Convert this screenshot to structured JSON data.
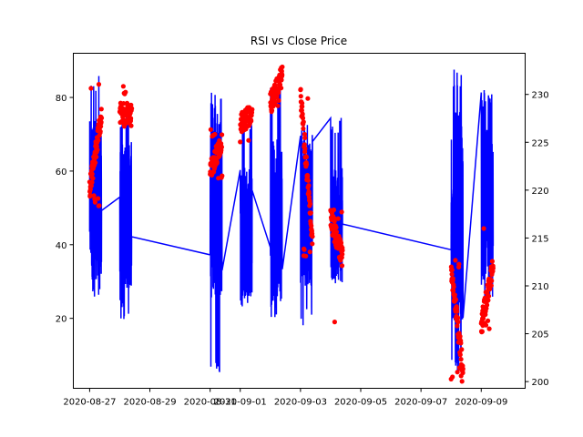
{
  "chart_data": {
    "type": "line",
    "title": "RSI vs Close Price",
    "xlabel": "",
    "ylabel_left": "",
    "ylabel_right": "",
    "x_tick_labels": [
      "2020-08-27",
      "2020-08-29",
      "2020-08-31",
      "2020-09-01",
      "2020-09-03",
      "2020-09-05",
      "2020-09-07",
      "2020-09-09"
    ],
    "xlim": [
      "2020-08-26T11:00",
      "2020-09-10T11:00"
    ],
    "y_left": {
      "lim": [
        1,
        92
      ],
      "ticks": [
        20,
        40,
        60,
        80
      ]
    },
    "y_right": {
      "lim": [
        199.3,
        234.3
      ],
      "ticks": [
        200,
        205,
        210,
        215,
        220,
        225,
        230
      ]
    },
    "grid": false,
    "legend": "none",
    "series": [
      {
        "axis": "left",
        "style": "line",
        "color": "#0000ff",
        "segments": [
          {
            "start": "2020-08-27T00:00",
            "end": "2020-08-27T09:30",
            "mid": 52,
            "low": 24,
            "high": 86
          },
          {
            "start": "2020-08-28T00:00",
            "end": "2020-08-28T09:30",
            "mid": 48,
            "low": 19,
            "high": 76
          },
          {
            "start": "2020-08-31T00:00",
            "end": "2020-08-31T09:30",
            "mid": 52,
            "low": 5,
            "high": 82
          },
          {
            "start": "2020-09-01T00:00",
            "end": "2020-09-01T09:30",
            "mid": 43,
            "low": 23,
            "high": 77
          },
          {
            "start": "2020-09-02T00:00",
            "end": "2020-09-02T09:30",
            "mid": 47,
            "low": 20,
            "high": 84
          },
          {
            "start": "2020-09-03T00:00",
            "end": "2020-09-03T09:30",
            "mid": 48,
            "low": 18,
            "high": 73
          },
          {
            "start": "2020-09-04T00:00",
            "end": "2020-09-04T09:30",
            "mid": 46,
            "low": 29,
            "high": 75
          },
          {
            "start": "2020-09-08T00:00",
            "end": "2020-09-08T09:30",
            "mid": 47,
            "low": 5,
            "high": 88
          },
          {
            "start": "2020-09-09T00:00",
            "end": "2020-09-09T09:30",
            "mid": 50,
            "low": 21,
            "high": 82
          }
        ]
      },
      {
        "axis": "right",
        "style": "scatter",
        "color": "#ff0000",
        "segments": [
          {
            "start": "2020-08-27T00:00",
            "end": "2020-08-27T09:30",
            "from": 220,
            "to": 228,
            "low": 218,
            "high": 232
          },
          {
            "start": "2020-08-28T00:00",
            "end": "2020-08-28T09:30",
            "from": 228,
            "to": 228,
            "low": 226,
            "high": 231
          },
          {
            "start": "2020-08-31T00:00",
            "end": "2020-08-31T09:30",
            "from": 222,
            "to": 225,
            "low": 221,
            "high": 227
          },
          {
            "start": "2020-09-01T00:00",
            "end": "2020-09-01T09:30",
            "from": 227,
            "to": 228,
            "low": 224,
            "high": 229
          },
          {
            "start": "2020-09-02T00:00",
            "end": "2020-09-02T09:30",
            "from": 229,
            "to": 232,
            "low": 228,
            "high": 234
          },
          {
            "start": "2020-09-03T00:00",
            "end": "2020-09-03T09:30",
            "from": 230,
            "to": 215,
            "low": 213,
            "high": 231
          },
          {
            "start": "2020-09-04T00:00",
            "end": "2020-09-04T09:30",
            "from": 217,
            "to": 213,
            "low": 206,
            "high": 218
          },
          {
            "start": "2020-09-08T00:00",
            "end": "2020-09-08T09:30",
            "from": 212,
            "to": 201,
            "low": 200,
            "high": 213
          },
          {
            "start": "2020-09-09T00:00",
            "end": "2020-09-09T09:30",
            "from": 206,
            "to": 212,
            "low": 205,
            "high": 216
          }
        ]
      }
    ]
  }
}
